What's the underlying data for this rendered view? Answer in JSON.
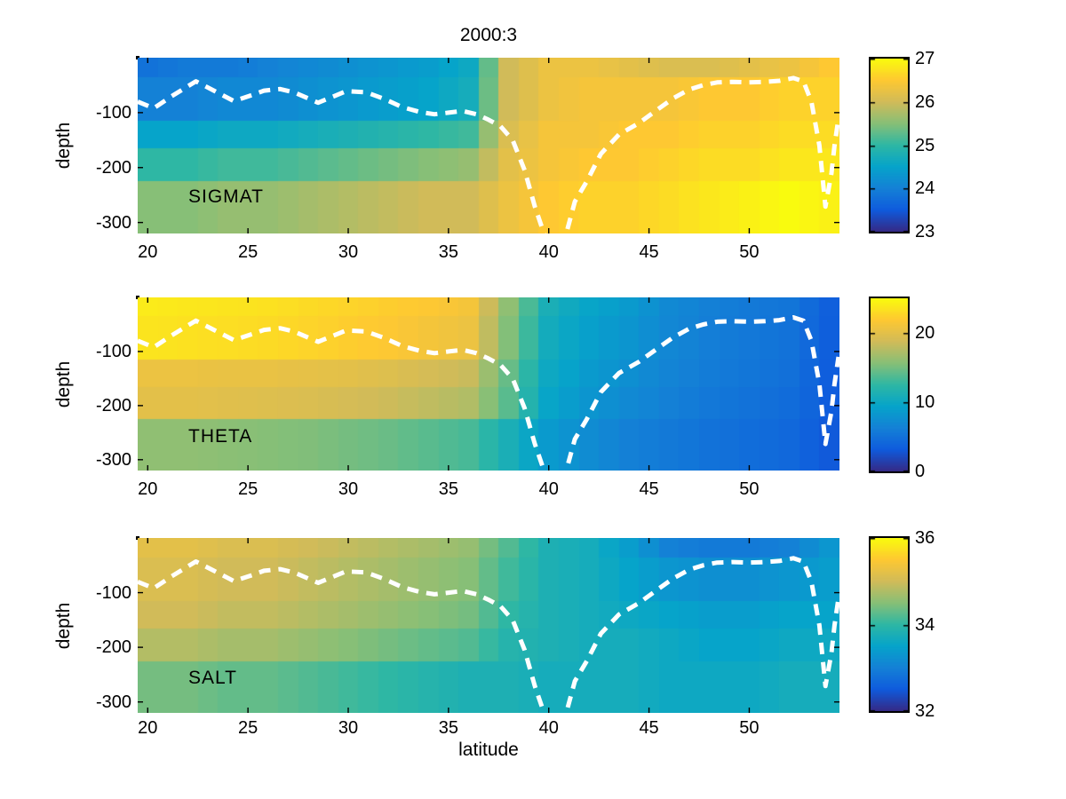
{
  "figure": {
    "title": "2000:3",
    "xlabel": "latitude",
    "ylabel": "depth",
    "background": "#ffffff",
    "axes_color": "#000000",
    "colormap": "parula",
    "colormap_anchors": [
      "#352a87",
      "#0f5cdd",
      "#1481d6",
      "#06a4ca",
      "#2eb7a4",
      "#87bf77",
      "#d1bb59",
      "#fec832",
      "#f9fb0e"
    ],
    "xlim": [
      19.5,
      54.5
    ],
    "ylim": [
      -320,
      0
    ],
    "x_tick_labels": [
      "20",
      "25",
      "30",
      "35",
      "40",
      "45",
      "50"
    ],
    "x_tick_values": [
      20,
      25,
      30,
      35,
      40,
      45,
      50
    ],
    "y_tick_labels": [
      "-100",
      "-200",
      "-300"
    ],
    "y_tick_values": [
      -100,
      -200,
      -300
    ],
    "mld_line": {
      "color": "#ffffff",
      "style": "dashed",
      "lat": [
        19.5,
        20.3,
        21.2,
        22.4,
        23.3,
        24.3,
        25.2,
        25.8,
        26.6,
        27.3,
        28.5,
        29.3,
        29.9,
        30.9,
        31.8,
        32.7,
        33.6,
        34.3,
        35.0,
        35.7,
        36.4,
        37.0,
        37.6,
        38.2,
        38.8,
        39.3,
        39.9,
        40.3,
        40.8,
        41.3,
        41.9,
        42.6,
        43.5,
        44.5,
        45.4,
        46.2,
        47.0,
        47.7,
        48.4,
        49.2,
        50.0,
        50.8,
        51.5,
        52.2,
        52.7,
        53.1,
        53.5,
        53.8,
        54.1,
        54.25,
        54.45
      ],
      "depth": [
        -80,
        -92,
        -70,
        -43,
        -60,
        -79,
        -68,
        -60,
        -57,
        -63,
        -82,
        -70,
        -61,
        -63,
        -75,
        -90,
        -99,
        -103,
        -100,
        -97,
        -103,
        -113,
        -125,
        -150,
        -205,
        -270,
        -335,
        -365,
        -330,
        -262,
        -225,
        -175,
        -140,
        -119,
        -95,
        -74,
        -58,
        -50,
        -45,
        -44,
        -45,
        -44,
        -42,
        -37,
        -43,
        -80,
        -160,
        -271,
        -210,
        -160,
        -110
      ]
    }
  },
  "chart_data": [
    {
      "type": "heatmap",
      "label": "SIGMAT",
      "lat": [
        20,
        22,
        24,
        26,
        28,
        30,
        32,
        34,
        36,
        38,
        40,
        42,
        44,
        46,
        48,
        50,
        52,
        54
      ],
      "depth_band_edges": [
        0,
        -35,
        -115,
        -165,
        -225,
        -320
      ],
      "values_by_band": [
        [
          23.8,
          23.9,
          23.9,
          24.0,
          24.1,
          24.2,
          24.3,
          24.4,
          24.6,
          26.0,
          26.3,
          26.3,
          26.2,
          26.1,
          26.1,
          26.2,
          26.3,
          26.5
        ],
        [
          24.0,
          24.0,
          24.1,
          24.1,
          24.2,
          24.3,
          24.4,
          24.5,
          24.7,
          26.0,
          26.3,
          26.4,
          26.4,
          26.4,
          26.5,
          26.5,
          26.6,
          26.6
        ],
        [
          24.5,
          24.5,
          24.6,
          24.6,
          24.7,
          24.8,
          24.9,
          25.0,
          25.1,
          26.1,
          26.4,
          26.4,
          26.5,
          26.5,
          26.6,
          26.6,
          26.7,
          26.7
        ],
        [
          25.0,
          25.0,
          25.1,
          25.1,
          25.2,
          25.3,
          25.4,
          25.5,
          25.6,
          26.2,
          26.4,
          26.5,
          26.5,
          26.6,
          26.7,
          26.7,
          26.8,
          26.8
        ],
        [
          25.5,
          25.5,
          25.6,
          25.6,
          25.7,
          25.8,
          25.9,
          26.0,
          26.0,
          26.3,
          26.5,
          26.6,
          26.6,
          26.7,
          26.8,
          26.9,
          27.0,
          26.9
        ]
      ],
      "colorbar": {
        "min": 23,
        "max": 27,
        "tick_values": [
          23,
          24,
          25,
          26,
          27
        ],
        "tick_labels": [
          "23",
          "24",
          "25",
          "26",
          "27"
        ]
      }
    },
    {
      "type": "heatmap",
      "label": "THETA",
      "lat": [
        20,
        22,
        24,
        26,
        28,
        30,
        32,
        34,
        36,
        38,
        40,
        42,
        44,
        46,
        48,
        50,
        52,
        54
      ],
      "depth_band_edges": [
        0,
        -35,
        -115,
        -165,
        -225,
        -320
      ],
      "values_by_band": [
        [
          24.0,
          23.8,
          23.6,
          23.4,
          23.0,
          22.6,
          22.2,
          21.8,
          21.2,
          16.0,
          11.0,
          9.5,
          8.5,
          7.0,
          6.2,
          5.6,
          5.2,
          3.5
        ],
        [
          23.6,
          23.4,
          23.2,
          23.0,
          22.6,
          22.2,
          21.8,
          21.2,
          20.6,
          15.5,
          10.5,
          9.0,
          8.0,
          6.8,
          6.0,
          5.5,
          5.0,
          3.4
        ],
        [
          20.6,
          20.6,
          20.4,
          20.4,
          20.2,
          20.0,
          19.6,
          19.0,
          18.4,
          14.5,
          10.0,
          8.5,
          7.5,
          6.5,
          5.8,
          5.3,
          4.8,
          3.3
        ],
        [
          20.0,
          20.0,
          19.8,
          19.6,
          19.4,
          19.0,
          18.6,
          18.0,
          17.4,
          14.0,
          9.5,
          8.0,
          7.0,
          6.2,
          5.5,
          5.0,
          4.5,
          3.2
        ],
        [
          16.0,
          16.0,
          15.8,
          15.6,
          15.4,
          15.0,
          14.6,
          14.0,
          13.4,
          11.0,
          8.5,
          7.2,
          6.2,
          5.6,
          5.0,
          4.6,
          4.1,
          3.0
        ]
      ],
      "colorbar": {
        "min": 0,
        "max": 25,
        "tick_values": [
          0,
          10,
          20
        ],
        "tick_labels": [
          "0",
          "10",
          "20"
        ]
      }
    },
    {
      "type": "heatmap",
      "label": "SALT",
      "lat": [
        20,
        22,
        24,
        26,
        28,
        30,
        32,
        34,
        36,
        38,
        40,
        42,
        44,
        46,
        48,
        50,
        52,
        54
      ],
      "depth_band_edges": [
        0,
        -35,
        -115,
        -165,
        -225,
        -320
      ],
      "values_by_band": [
        [
          35.2,
          35.2,
          35.1,
          35.1,
          35.0,
          34.9,
          34.8,
          34.7,
          34.6,
          34.2,
          33.8,
          33.7,
          33.4,
          33.0,
          32.9,
          32.9,
          33.0,
          33.3
        ],
        [
          35.1,
          35.1,
          35.0,
          35.0,
          34.9,
          34.8,
          34.7,
          34.6,
          34.5,
          34.1,
          33.8,
          33.7,
          33.5,
          33.3,
          33.2,
          33.2,
          33.3,
          33.4
        ],
        [
          35.0,
          35.0,
          34.9,
          34.9,
          34.8,
          34.7,
          34.6,
          34.5,
          34.4,
          34.0,
          33.8,
          33.7,
          33.6,
          33.5,
          33.4,
          33.4,
          33.5,
          33.5
        ],
        [
          34.8,
          34.8,
          34.7,
          34.7,
          34.6,
          34.5,
          34.4,
          34.3,
          34.2,
          33.9,
          33.8,
          33.7,
          33.7,
          33.6,
          33.5,
          33.5,
          33.6,
          33.6
        ],
        [
          34.4,
          34.4,
          34.3,
          34.3,
          34.2,
          34.1,
          34.0,
          33.9,
          33.8,
          33.8,
          33.7,
          33.7,
          33.7,
          33.6,
          33.6,
          33.6,
          33.7,
          33.7
        ]
      ],
      "colorbar": {
        "min": 32,
        "max": 36,
        "tick_values": [
          32,
          34,
          36
        ],
        "tick_labels": [
          "32",
          "34",
          "36"
        ]
      }
    }
  ]
}
